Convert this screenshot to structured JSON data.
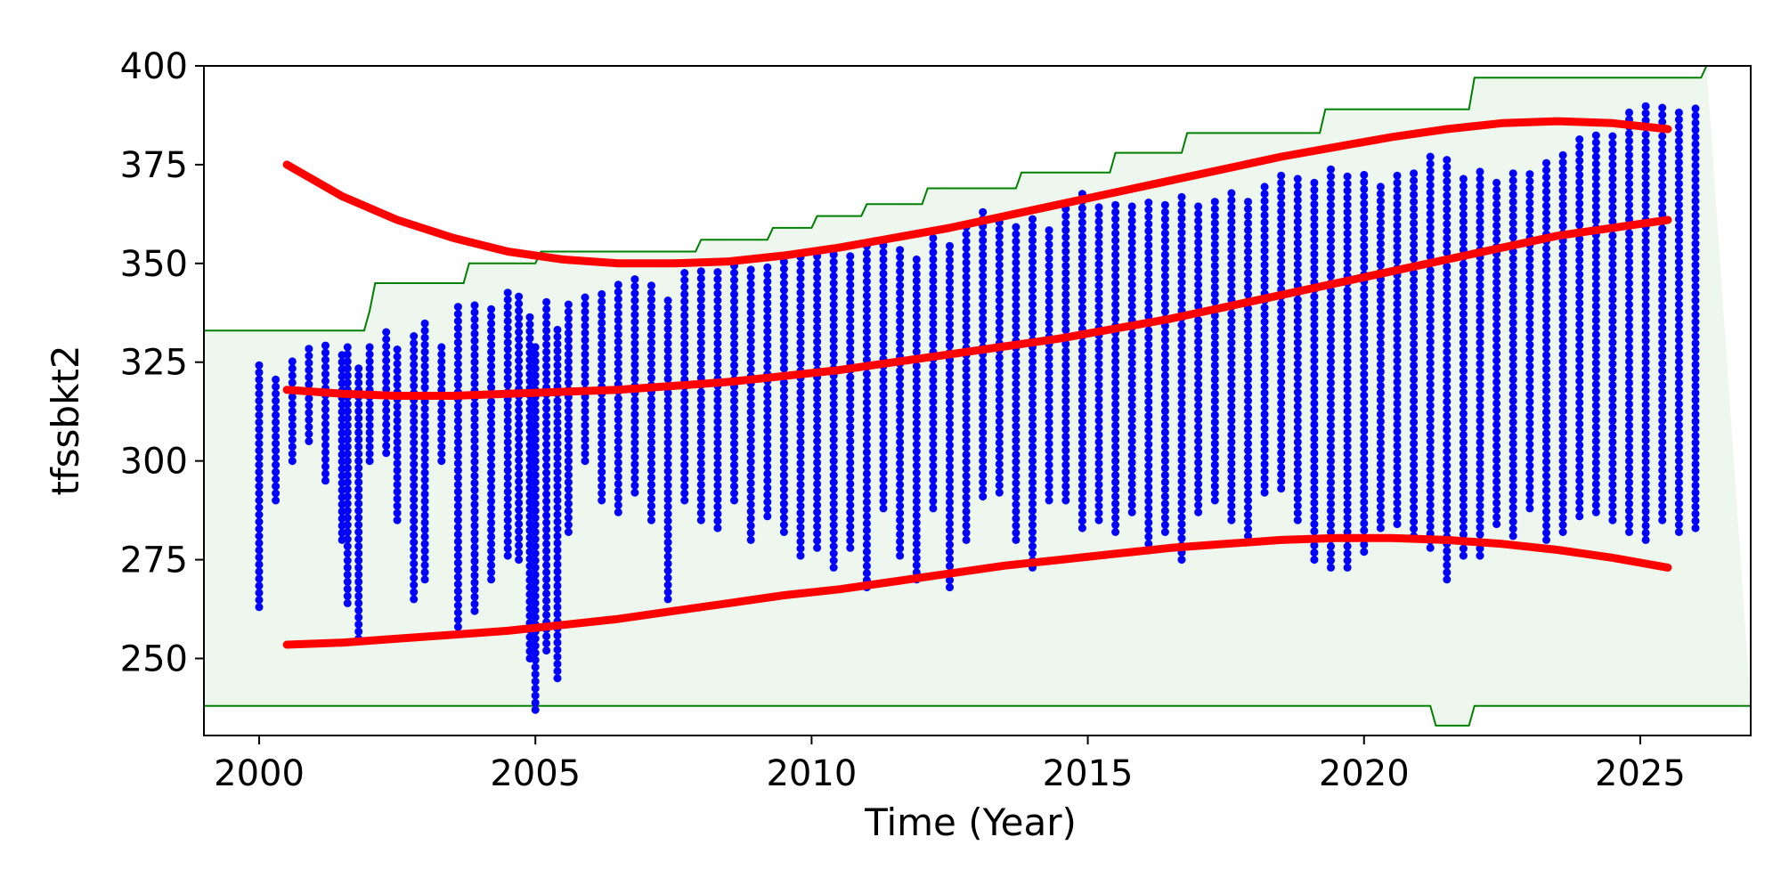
{
  "chart_data": {
    "type": "scatter",
    "title": "",
    "xlabel": "Time (Year)",
    "ylabel": "tfssbkt2",
    "xlim": [
      1999.0,
      2027.0
    ],
    "ylim": [
      230.5,
      400
    ],
    "xticks": [
      2000,
      2005,
      2010,
      2015,
      2020,
      2025
    ],
    "yticks": [
      250,
      275,
      300,
      325,
      350,
      375,
      400
    ],
    "grid": false,
    "legend": "none",
    "colors": {
      "points": "#0000ff",
      "trend": "#ff0000",
      "limit_line": "#008000",
      "limit_fill": "#eef7ee"
    },
    "upper_limit_steps": [
      [
        1999.0,
        333
      ],
      [
        2001.9,
        333
      ],
      [
        2002.0,
        338
      ],
      [
        2002.1,
        345
      ],
      [
        2003.7,
        345
      ],
      [
        2003.8,
        350
      ],
      [
        2005.0,
        350
      ],
      [
        2005.1,
        353
      ],
      [
        2007.9,
        353
      ],
      [
        2008.0,
        356
      ],
      [
        2009.2,
        356
      ],
      [
        2009.3,
        359
      ],
      [
        2010.0,
        359
      ],
      [
        2010.1,
        362
      ],
      [
        2010.9,
        362
      ],
      [
        2011.0,
        365
      ],
      [
        2012.0,
        365
      ],
      [
        2012.1,
        369
      ],
      [
        2013.7,
        369
      ],
      [
        2013.8,
        373
      ],
      [
        2015.4,
        373
      ],
      [
        2015.5,
        378
      ],
      [
        2016.7,
        378
      ],
      [
        2016.8,
        383
      ],
      [
        2019.2,
        383
      ],
      [
        2019.3,
        389
      ],
      [
        2021.9,
        389
      ],
      [
        2022.0,
        397
      ],
      [
        2026.1,
        397
      ],
      [
        2026.2,
        400
      ]
    ],
    "lower_limit_steps": [
      [
        1999.0,
        238
      ],
      [
        2021.2,
        238
      ],
      [
        2021.3,
        233
      ],
      [
        2021.9,
        233
      ],
      [
        2022.0,
        238
      ],
      [
        2027.0,
        238
      ]
    ],
    "trend_upper": {
      "x": [
        2000.5,
        2001.5,
        2002.5,
        2003.5,
        2004.5,
        2005.5,
        2006.5,
        2007.5,
        2008.5,
        2009.5,
        2010.5,
        2011.5,
        2012.5,
        2013.5,
        2014.5,
        2015.5,
        2016.5,
        2017.5,
        2018.5,
        2019.5,
        2020.5,
        2021.5,
        2022.5,
        2023.5,
        2024.5,
        2025.5
      ],
      "y": [
        375,
        367,
        361,
        356.5,
        353,
        351,
        350,
        350,
        350.5,
        352,
        354,
        356.5,
        359,
        362,
        365,
        368,
        371,
        374,
        377,
        379.5,
        382,
        384,
        385.5,
        386,
        385.5,
        384
      ]
    },
    "trend_mid": {
      "x": [
        2000.5,
        2001.5,
        2002.5,
        2003.5,
        2004.5,
        2005.5,
        2006.5,
        2007.5,
        2008.5,
        2009.5,
        2010.5,
        2011.5,
        2012.5,
        2013.5,
        2014.5,
        2015.5,
        2016.5,
        2017.5,
        2018.5,
        2019.5,
        2020.5,
        2021.5,
        2022.5,
        2023.5,
        2024.5,
        2025.5
      ],
      "y": [
        318,
        317,
        316.5,
        316.5,
        317,
        317.5,
        318,
        319,
        320,
        321.5,
        323,
        325,
        327,
        329,
        331,
        333.5,
        336,
        339,
        342,
        345,
        348,
        351,
        354,
        357,
        359,
        361
      ]
    },
    "trend_lower": {
      "x": [
        2000.5,
        2001.5,
        2002.5,
        2003.5,
        2004.5,
        2005.5,
        2006.5,
        2007.5,
        2008.5,
        2009.5,
        2010.5,
        2011.5,
        2012.5,
        2013.5,
        2014.5,
        2015.5,
        2016.5,
        2017.5,
        2018.5,
        2019.5,
        2020.5,
        2021.5,
        2022.5,
        2023.5,
        2024.5,
        2025.5
      ],
      "y": [
        253.5,
        254,
        255,
        256,
        257,
        258.5,
        260,
        262,
        264,
        266,
        267.5,
        269.5,
        271.5,
        273.5,
        275,
        276.5,
        278,
        279,
        280,
        280.5,
        280.5,
        280,
        279,
        277.5,
        275.5,
        273
      ]
    },
    "point_columns": [
      [
        2000.0,
        263,
        325
      ],
      [
        2000.3,
        290,
        322
      ],
      [
        2000.6,
        300,
        326
      ],
      [
        2000.9,
        305,
        330
      ],
      [
        2001.2,
        295,
        331
      ],
      [
        2001.5,
        280,
        328
      ],
      [
        2001.6,
        264,
        330
      ],
      [
        2001.8,
        255,
        325
      ],
      [
        2002.0,
        300,
        330
      ],
      [
        2002.3,
        302,
        333
      ],
      [
        2002.5,
        285,
        330
      ],
      [
        2002.8,
        265,
        332
      ],
      [
        2003.0,
        270,
        335
      ],
      [
        2003.3,
        300,
        330
      ],
      [
        2003.6,
        258,
        340
      ],
      [
        2003.9,
        262,
        341
      ],
      [
        2004.2,
        270,
        340
      ],
      [
        2004.5,
        276,
        343
      ],
      [
        2004.7,
        275,
        342
      ],
      [
        2004.9,
        250,
        338
      ],
      [
        2005.0,
        237,
        330
      ],
      [
        2005.2,
        252,
        342
      ],
      [
        2005.4,
        245,
        335
      ],
      [
        2005.6,
        282,
        340
      ],
      [
        2005.9,
        300,
        342
      ],
      [
        2006.2,
        290,
        343
      ],
      [
        2006.5,
        287,
        346
      ],
      [
        2006.8,
        292,
        347
      ],
      [
        2007.1,
        285,
        345
      ],
      [
        2007.4,
        265,
        342
      ],
      [
        2007.7,
        290,
        349
      ],
      [
        2008.0,
        285,
        349
      ],
      [
        2008.3,
        283,
        348
      ],
      [
        2008.6,
        290,
        350
      ],
      [
        2008.9,
        280,
        349
      ],
      [
        2009.2,
        286,
        350
      ],
      [
        2009.5,
        282,
        352
      ],
      [
        2009.8,
        276,
        353
      ],
      [
        2010.1,
        278,
        352
      ],
      [
        2010.4,
        273,
        354
      ],
      [
        2010.7,
        278,
        353
      ],
      [
        2011.0,
        268,
        355
      ],
      [
        2011.3,
        288,
        356
      ],
      [
        2011.6,
        276,
        355
      ],
      [
        2011.9,
        270,
        352
      ],
      [
        2012.2,
        288,
        357
      ],
      [
        2012.5,
        268,
        356
      ],
      [
        2012.8,
        280,
        360
      ],
      [
        2013.1,
        291,
        364
      ],
      [
        2013.4,
        292,
        362
      ],
      [
        2013.7,
        280,
        361
      ],
      [
        2014.0,
        273,
        362
      ],
      [
        2014.3,
        290,
        360
      ],
      [
        2014.6,
        290,
        365
      ],
      [
        2014.9,
        283,
        369
      ],
      [
        2015.2,
        285,
        366
      ],
      [
        2015.5,
        282,
        366
      ],
      [
        2015.8,
        287,
        365
      ],
      [
        2016.1,
        279,
        366
      ],
      [
        2016.4,
        282,
        366
      ],
      [
        2016.7,
        275,
        367
      ],
      [
        2017.0,
        287,
        366
      ],
      [
        2017.3,
        290,
        367
      ],
      [
        2017.6,
        285,
        368
      ],
      [
        2017.9,
        281,
        367
      ],
      [
        2018.2,
        292,
        370
      ],
      [
        2018.5,
        293,
        373
      ],
      [
        2018.8,
        285,
        372
      ],
      [
        2019.1,
        275,
        372
      ],
      [
        2019.4,
        273,
        374
      ],
      [
        2019.7,
        273,
        373
      ],
      [
        2020.0,
        277,
        373
      ],
      [
        2020.3,
        283,
        371
      ],
      [
        2020.6,
        284,
        373
      ],
      [
        2020.9,
        281,
        373
      ],
      [
        2021.2,
        278,
        378
      ],
      [
        2021.5,
        270,
        378
      ],
      [
        2021.8,
        276,
        372
      ],
      [
        2022.1,
        276,
        375
      ],
      [
        2022.4,
        284,
        372
      ],
      [
        2022.7,
        281,
        373
      ],
      [
        2023.0,
        288,
        373
      ],
      [
        2023.3,
        280,
        376
      ],
      [
        2023.6,
        282,
        378
      ],
      [
        2023.9,
        286,
        383
      ],
      [
        2024.2,
        287,
        383
      ],
      [
        2024.5,
        285,
        383
      ],
      [
        2024.8,
        282,
        389
      ],
      [
        2025.1,
        280,
        390
      ],
      [
        2025.4,
        285,
        390
      ],
      [
        2025.7,
        282,
        390
      ],
      [
        2026.0,
        283,
        390
      ]
    ]
  }
}
